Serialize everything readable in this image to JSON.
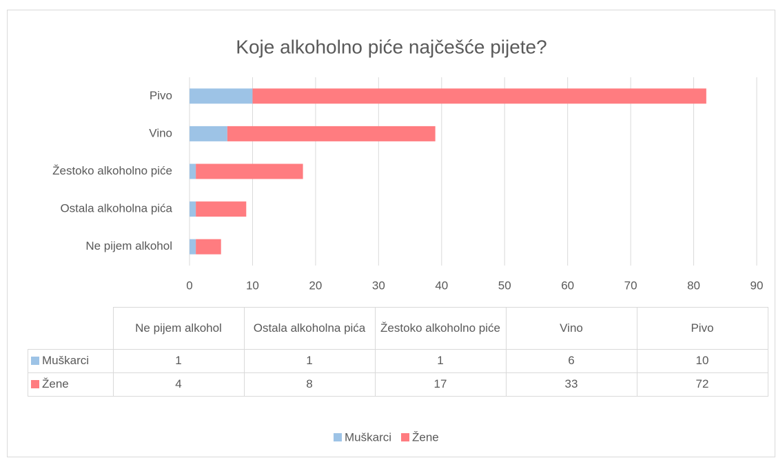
{
  "chart_data": {
    "type": "bar",
    "orientation": "horizontal",
    "stacked": true,
    "title": "Koje alkoholno piće najčešće pijete?",
    "categories": [
      "Ne pijem alkohol",
      "Ostala alkoholna pića",
      "Žestoko alkoholno piće",
      "Vino",
      "Pivo"
    ],
    "series": [
      {
        "name": "Muškarci",
        "color": "#9dc3e6",
        "values": [
          1,
          1,
          1,
          6,
          10
        ]
      },
      {
        "name": "Žene",
        "color": "#ff7c80",
        "values": [
          4,
          8,
          17,
          33,
          72
        ]
      }
    ],
    "xlim": [
      0,
      90
    ],
    "xticks": [
      0,
      10,
      20,
      30,
      40,
      50,
      60,
      70,
      80,
      90
    ],
    "grid": true,
    "data_table": true,
    "legend": "bottom"
  }
}
